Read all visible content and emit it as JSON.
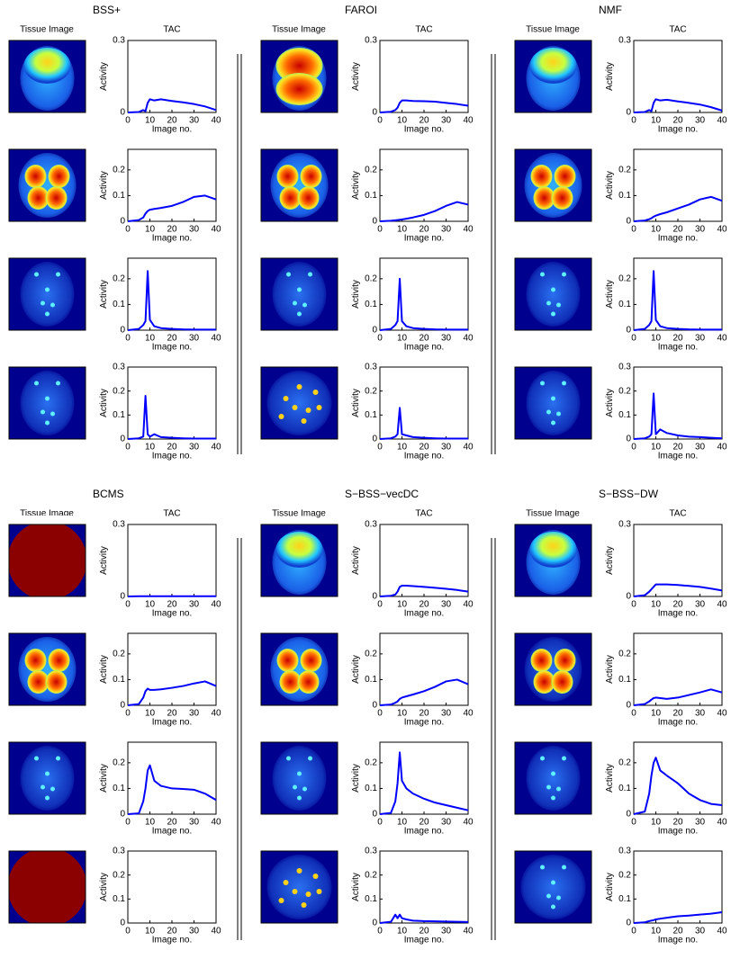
{
  "chart_data": {
    "type": "line",
    "image_header": "Tissue Image",
    "tac_header": "TAC",
    "xlabel": "Image no.",
    "ylabel": "Activity",
    "x": [
      0,
      5,
      7,
      8,
      9,
      10,
      12,
      15,
      20,
      25,
      30,
      35,
      40
    ],
    "xlim": [
      0,
      40
    ],
    "xticks": [
      0,
      10,
      20,
      30,
      40
    ],
    "color": "#0000ff",
    "row_axes": [
      {
        "ylim": [
          0,
          0.3
        ],
        "yticks": [
          0,
          0.3
        ]
      },
      {
        "ylim": [
          0,
          0.28
        ],
        "yticks": [
          0,
          0.1,
          0.2
        ]
      },
      {
        "ylim": [
          0,
          0.28
        ],
        "yticks": [
          0,
          0.1,
          0.2
        ]
      },
      {
        "ylim": [
          0,
          0.3
        ],
        "yticks": [
          0,
          0.1,
          0.2,
          0.3
        ]
      }
    ],
    "panels": [
      {
        "title": "BSS+",
        "plots": [
          {
            "values": [
              0,
              0.002,
              0.01,
              0.005,
              0.04,
              0.055,
              0.05,
              0.055,
              0.048,
              0.042,
              0.035,
              0.025,
              0.01
            ]
          },
          {
            "values": [
              0,
              0.005,
              0.015,
              0.03,
              0.04,
              0.045,
              0.048,
              0.052,
              0.06,
              0.075,
              0.095,
              0.1,
              0.085
            ]
          },
          {
            "values": [
              0,
              0.005,
              0.02,
              0.035,
              0.23,
              0.04,
              0.015,
              0.008,
              0.005,
              0.003,
              0.002,
              0.002,
              0.002
            ]
          },
          {
            "values": [
              0,
              0.003,
              0.01,
              0.18,
              0.02,
              0.01,
              0.02,
              0.008,
              0.005,
              0.003,
              0.002,
              0.002,
              0.002
            ]
          }
        ]
      },
      {
        "title": "FAROI",
        "plots": [
          {
            "values": [
              0,
              0.003,
              0.01,
              0.02,
              0.04,
              0.05,
              0.05,
              0.048,
              0.047,
              0.045,
              0.04,
              0.035,
              0.028
            ]
          },
          {
            "values": [
              0,
              0.002,
              0.004,
              0.005,
              0.006,
              0.007,
              0.01,
              0.015,
              0.025,
              0.04,
              0.06,
              0.075,
              0.065
            ]
          },
          {
            "values": [
              0,
              0.005,
              0.02,
              0.035,
              0.2,
              0.035,
              0.015,
              0.008,
              0.005,
              0.003,
              0.002,
              0.002,
              0.002
            ]
          },
          {
            "values": [
              0,
              0.003,
              0.01,
              0.02,
              0.13,
              0.02,
              0.015,
              0.008,
              0.005,
              0.003,
              0.002,
              0.002,
              0.002
            ]
          }
        ]
      },
      {
        "title": "NMF",
        "plots": [
          {
            "values": [
              0,
              0.002,
              0.01,
              0.005,
              0.04,
              0.055,
              0.05,
              0.053,
              0.046,
              0.04,
              0.033,
              0.022,
              0.008
            ]
          },
          {
            "values": [
              0,
              0.003,
              0.008,
              0.012,
              0.018,
              0.022,
              0.028,
              0.035,
              0.05,
              0.065,
              0.085,
              0.095,
              0.08
            ]
          },
          {
            "values": [
              0,
              0.005,
              0.02,
              0.035,
              0.23,
              0.04,
              0.015,
              0.008,
              0.005,
              0.003,
              0.002,
              0.002,
              0.002
            ]
          },
          {
            "values": [
              0,
              0.003,
              0.01,
              0.02,
              0.19,
              0.02,
              0.04,
              0.025,
              0.015,
              0.01,
              0.008,
              0.005,
              0.003
            ]
          }
        ]
      },
      {
        "title": "BCMS",
        "plots": [
          {
            "values": [
              0,
              0.001,
              0.001,
              0.001,
              0.001,
              0.001,
              0.001,
              0.001,
              0.001,
              0.001,
              0.001,
              0.001,
              0.001
            ]
          },
          {
            "values": [
              0,
              0.005,
              0.03,
              0.055,
              0.065,
              0.06,
              0.06,
              0.062,
              0.068,
              0.075,
              0.085,
              0.093,
              0.075
            ]
          },
          {
            "values": [
              0,
              0.003,
              0.05,
              0.1,
              0.17,
              0.19,
              0.13,
              0.11,
              0.1,
              0.098,
              0.095,
              0.08,
              0.055
            ]
          },
          {
            "values": [
              null,
              null,
              null,
              null,
              null,
              null,
              null,
              null,
              null,
              null,
              null,
              null,
              null
            ]
          }
        ]
      },
      {
        "title": "S−BSS−vecDC",
        "plots": [
          {
            "values": [
              0,
              0.003,
              0.008,
              0.02,
              0.04,
              0.045,
              0.045,
              0.043,
              0.04,
              0.036,
              0.032,
              0.027,
              0.02
            ]
          },
          {
            "values": [
              0,
              0.003,
              0.01,
              0.015,
              0.025,
              0.03,
              0.035,
              0.042,
              0.055,
              0.072,
              0.093,
              0.1,
              0.082
            ]
          },
          {
            "values": [
              0,
              0.005,
              0.05,
              0.12,
              0.24,
              0.13,
              0.1,
              0.08,
              0.06,
              0.045,
              0.035,
              0.025,
              0.015
            ]
          },
          {
            "values": [
              0,
              0.005,
              0.035,
              0.02,
              0.035,
              0.02,
              0.015,
              0.01,
              0.008,
              0.007,
              0.006,
              0.005,
              0.004
            ]
          }
        ]
      },
      {
        "title": "S−BSS−DW",
        "plots": [
          {
            "values": [
              0,
              0.005,
              0.02,
              0.03,
              0.04,
              0.05,
              0.05,
              0.05,
              0.048,
              0.044,
              0.04,
              0.033,
              0.025
            ]
          },
          {
            "values": [
              0,
              0.005,
              0.015,
              0.022,
              0.028,
              0.03,
              0.028,
              0.025,
              0.03,
              0.04,
              0.05,
              0.062,
              0.05
            ]
          },
          {
            "values": [
              0,
              0.01,
              0.08,
              0.15,
              0.2,
              0.22,
              0.17,
              0.15,
              0.12,
              0.08,
              0.055,
              0.04,
              0.035
            ]
          },
          {
            "values": [
              0,
              0.003,
              0.008,
              0.01,
              0.012,
              0.015,
              0.018,
              0.022,
              0.028,
              0.031,
              0.035,
              0.039,
              0.045
            ]
          }
        ]
      }
    ]
  }
}
